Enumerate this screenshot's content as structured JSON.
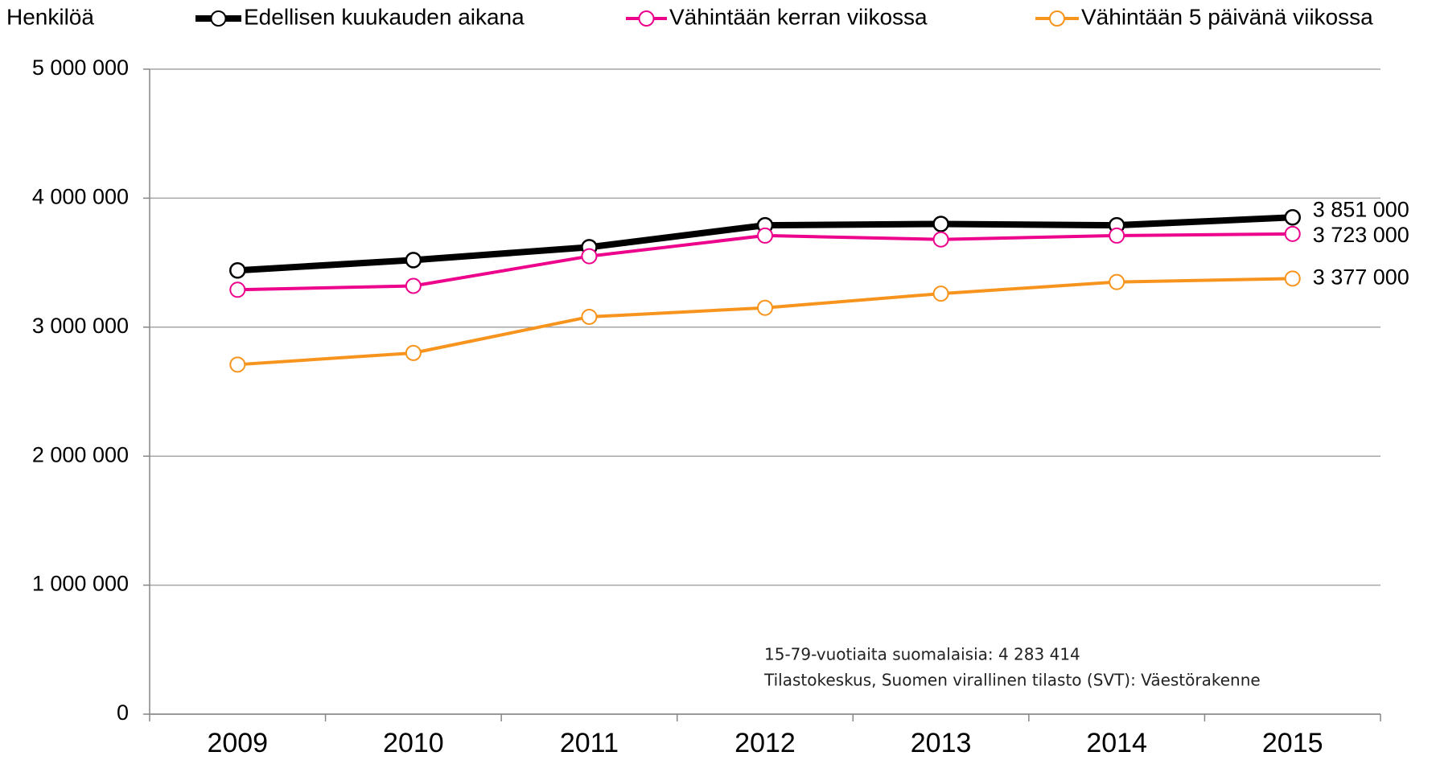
{
  "chart_data": {
    "type": "line",
    "y_label": "Henkilöä",
    "categories": [
      "2009",
      "2010",
      "2011",
      "2012",
      "2013",
      "2014",
      "2015"
    ],
    "series": [
      {
        "name": "Edellisen kuukauden aikana",
        "color": "#000000",
        "values": [
          3440000,
          3520000,
          3620000,
          3790000,
          3800000,
          3790000,
          3851000
        ],
        "value_labels": [
          null,
          null,
          null,
          null,
          null,
          null,
          "3 851 000"
        ]
      },
      {
        "name": "Vähintään kerran viikossa",
        "color": "#ec008c",
        "values": [
          3290000,
          3320000,
          3550000,
          3710000,
          3680000,
          3710000,
          3723000
        ],
        "value_labels": [
          null,
          null,
          null,
          null,
          null,
          null,
          "3 723 000"
        ]
      },
      {
        "name": "Vähintään 5 päivänä viikossa",
        "color": "#f7941d",
        "values": [
          2710000,
          2800000,
          3080000,
          3150000,
          3260000,
          3350000,
          3377000
        ],
        "value_labels": [
          null,
          null,
          null,
          null,
          null,
          null,
          "3 377 000"
        ]
      }
    ],
    "ylim": [
      0,
      5000000
    ],
    "yticks": [
      0,
      {
        "value": 1000000,
        "label": "1 000 000"
      },
      {
        "value": 2000000,
        "label": "2 000 000"
      },
      {
        "value": 3000000,
        "label": "3 000 000"
      },
      {
        "value": 4000000,
        "label": "4 000 000"
      },
      {
        "value": 5000000,
        "label": "5 000 000"
      }
    ],
    "grid": true,
    "annotations": [
      "15-79-vuotiaita suomalaisia: 4 283 414",
      "Tilastokeskus, Suomen virallinen tilasto (SVT): Väestörakenne"
    ]
  }
}
